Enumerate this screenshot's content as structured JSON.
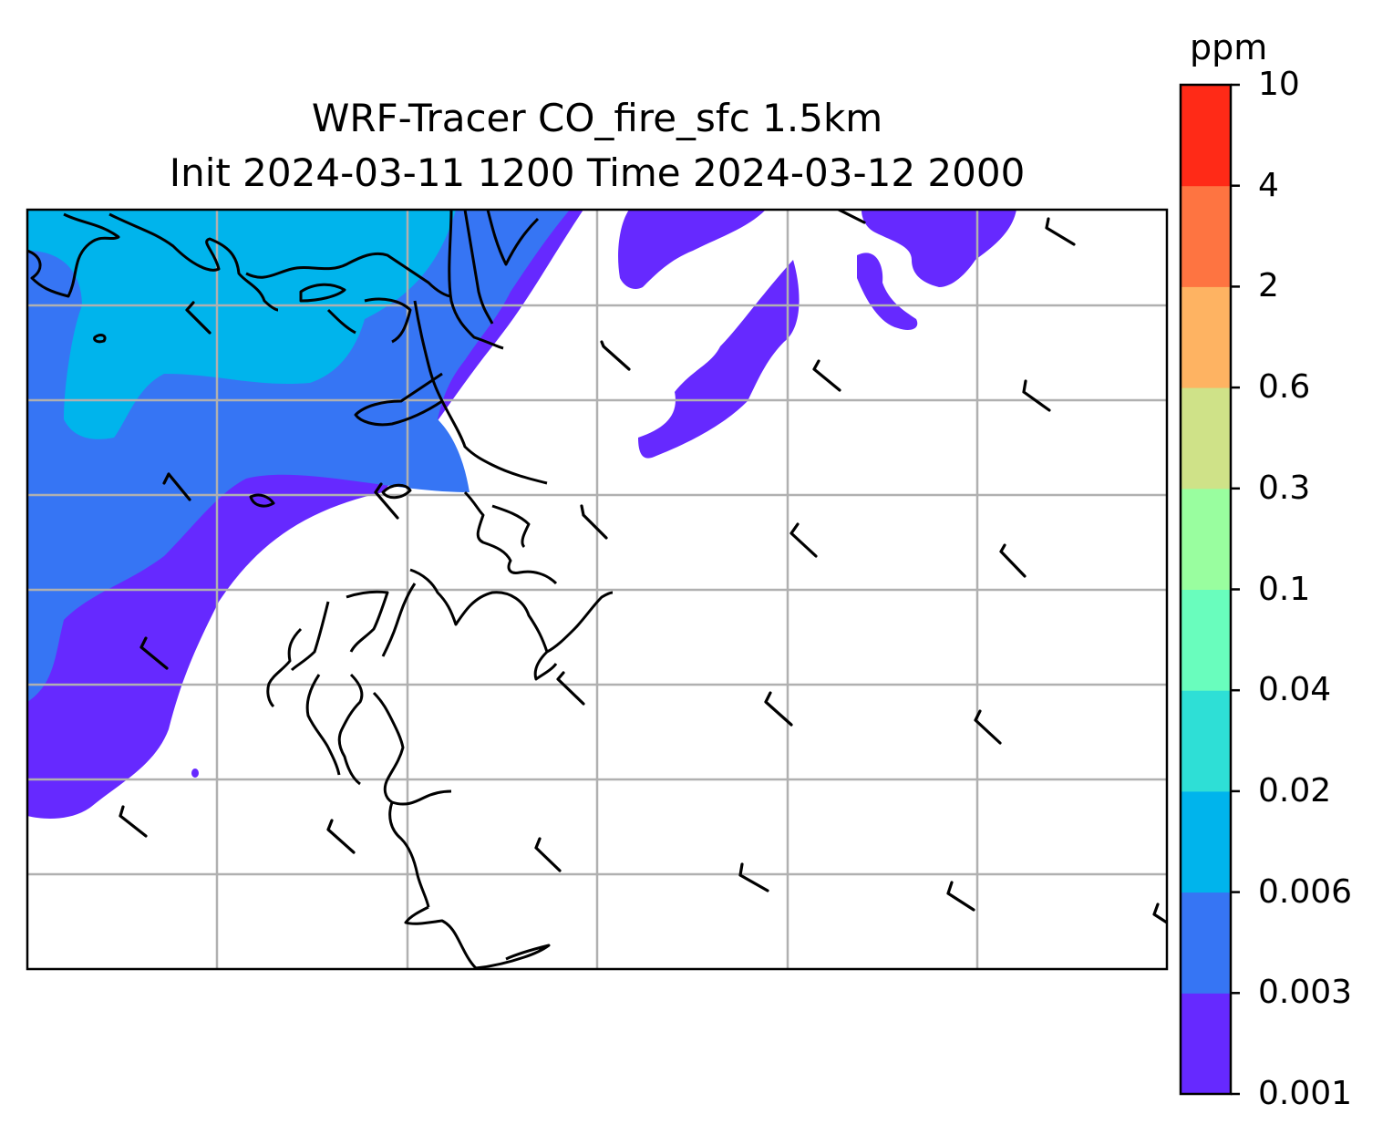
{
  "figure": {
    "title_line1": "WRF-Tracer CO_fire_sfc 1.5km",
    "title_line2": "Init 2024-03-11 1200 Time 2024-03-12 2000"
  },
  "colorbar": {
    "unit": "ppm",
    "labels": [
      "0.001",
      "0.003",
      "0.006",
      "0.02",
      "0.04",
      "0.1",
      "0.3",
      "0.6",
      "2",
      "4",
      "10"
    ],
    "colors": [
      "#6629ff",
      "#3675f4",
      "#00b4ec",
      "#2edfd6",
      "#69fdbd",
      "#99fe9f",
      "#cfe288",
      "#feb362",
      "#fe7441",
      "#ff2a17"
    ]
  },
  "map": {
    "gridlines": true,
    "field_colors": {
      "low": "#6629ff",
      "mid": "#3675f4",
      "high": "#00b4ec",
      "background": "#ffffff"
    },
    "gridline_color": "#b0b0b0",
    "coastline_color": "#000000",
    "wind_barb_color": "#000000"
  }
}
